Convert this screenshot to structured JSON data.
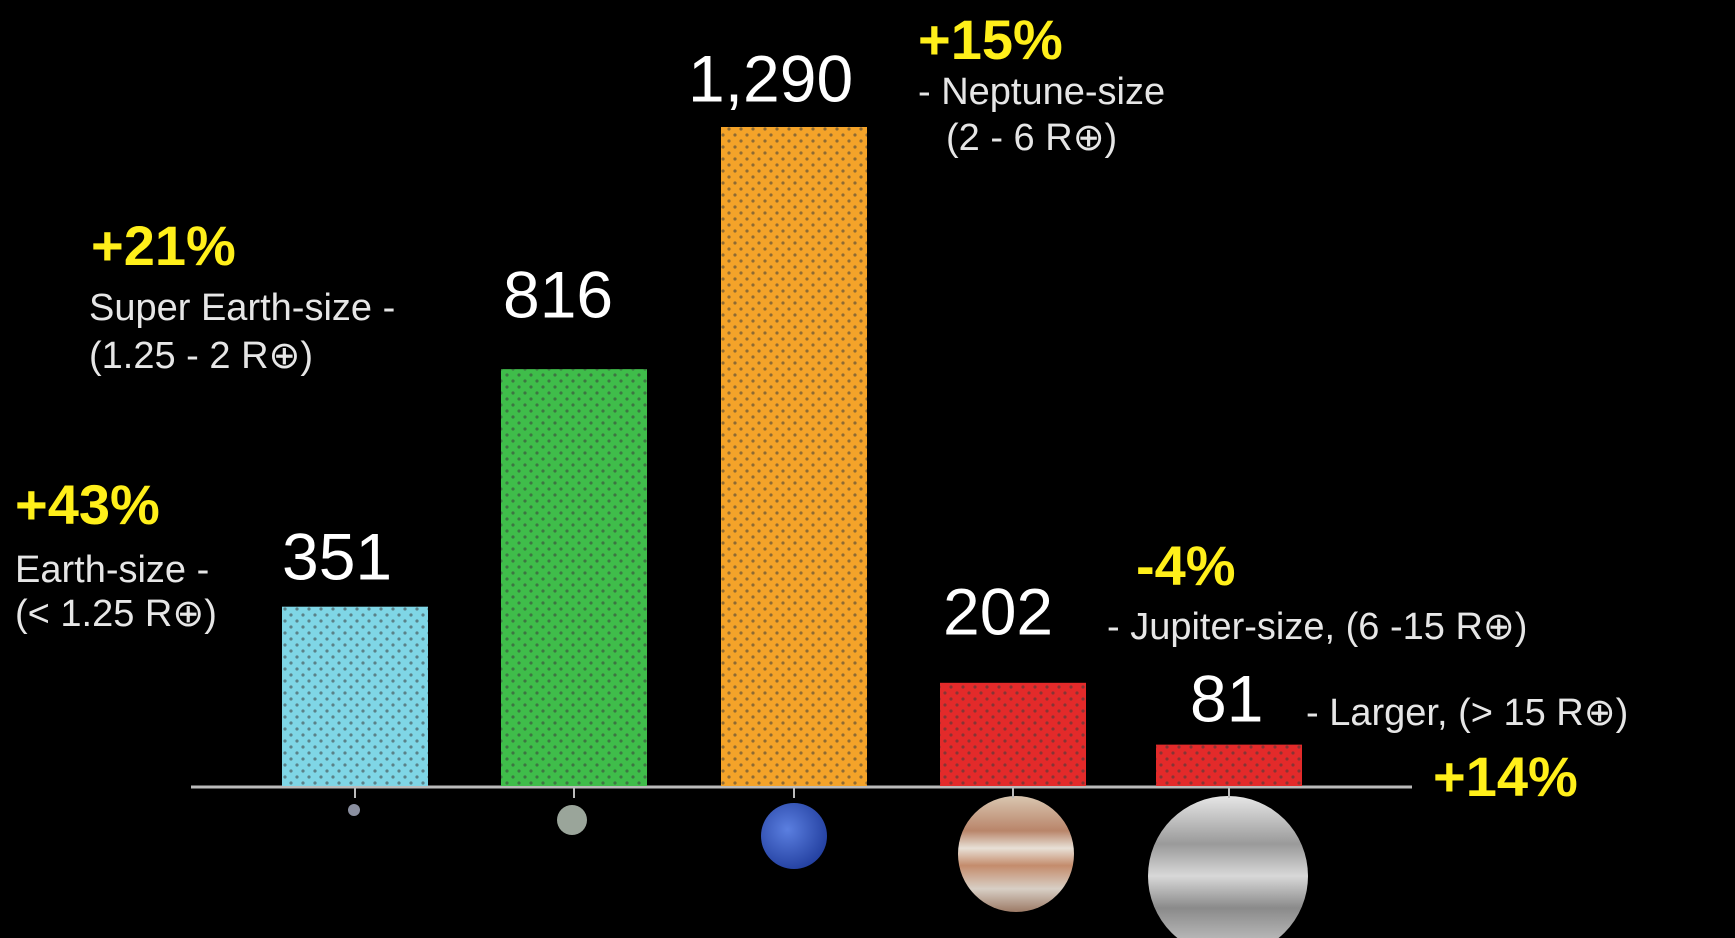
{
  "chart_data": {
    "type": "bar",
    "categories": [
      "Earth-size -",
      "Super Earth-size -",
      "- Neptune-size",
      "- Jupiter-size, (6 -15 R⊕)",
      "- Larger, (> 15 R⊕)"
    ],
    "sublabels": [
      "(< 1.25 R⊕)",
      "(1.25 - 2 R⊕)",
      "(2 - 6 R⊕)",
      null,
      null
    ],
    "changes": [
      "+43%",
      "+21%",
      "+15%",
      "-4%",
      "+14%"
    ],
    "values": [
      351,
      816,
      1290,
      202,
      81
    ],
    "value_labels": [
      "351",
      "816",
      "1,290",
      "202",
      "81"
    ],
    "colors": [
      "#7fd6e6",
      "#3fbd4a",
      "#f4a329",
      "#e32a2a",
      "#e32a2a"
    ],
    "ylim": [
      0,
      1290
    ]
  }
}
